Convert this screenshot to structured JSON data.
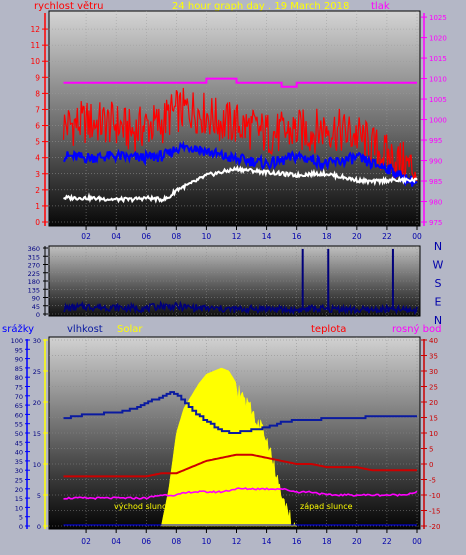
{
  "title": "24 hour graph day . 19 March 2018",
  "colors": {
    "background": "#b4b7c6",
    "wind_speed": "#ff0000",
    "wind_avg": "#0000ff",
    "wind_dir": "#00007a",
    "pressure": "#ff00ff",
    "gust": "#ffffff",
    "humidity": "#0a1aa0",
    "solar": "#ffff00",
    "temperature": "#cc0000",
    "dew_point": "#ff00ff",
    "rain": "#0000ff"
  },
  "x_tick_labels": [
    "02",
    "04",
    "06",
    "08",
    "10",
    "12",
    "14",
    "16",
    "18",
    "20",
    "22",
    "00"
  ],
  "chart_data": [
    {
      "type": "line",
      "title": "24 hour graph day . 19 March 2018",
      "y_left_label": "rychlost větru",
      "y_right_label": "tlak",
      "y_left_ticks": [
        "0",
        "1",
        "2",
        "3",
        "4",
        "5",
        "6",
        "7",
        "8",
        "9",
        "10",
        "11",
        "12"
      ],
      "y_right_ticks": [
        "975",
        "980",
        "985",
        "990",
        "995",
        "1000",
        "1005",
        "1010",
        "1015",
        "1020",
        "1025"
      ],
      "ylim_left": [
        0,
        13
      ],
      "ylim_right": [
        975,
        1026
      ],
      "x": [
        0.5,
        2,
        4,
        5,
        6,
        7,
        7.5,
        8,
        9,
        10,
        11,
        12,
        13,
        14,
        15,
        16,
        17,
        18,
        19,
        20,
        21,
        22,
        23,
        24
      ],
      "series": [
        {
          "values": [
            6.0,
            6.2,
            6.1,
            5.6,
            6.0,
            6.1,
            6.6,
            6.9,
            7.0,
            6.7,
            6.2,
            6.1,
            5.8,
            5.5,
            5.5,
            5.7,
            5.6,
            5.9,
            5.6,
            5.4,
            4.7,
            4.1,
            3.7,
            3.2
          ]
        },
        {
          "values": [
            4.1,
            4.0,
            4.1,
            4.0,
            4.0,
            4.1,
            4.2,
            4.6,
            4.7,
            4.4,
            4.1,
            3.9,
            3.8,
            3.6,
            3.8,
            4.1,
            3.9,
            3.6,
            3.8,
            4.0,
            3.6,
            3.4,
            2.8,
            2.4
          ]
        },
        {
          "values": [
            1.5,
            1.5,
            1.4,
            1.4,
            1.5,
            1.4,
            1.5,
            2.0,
            2.4,
            2.9,
            3.1,
            3.3,
            3.2,
            3.1,
            3.0,
            2.9,
            3.0,
            3.0,
            2.8,
            2.6,
            2.5,
            2.6,
            2.6,
            2.6
          ]
        },
        {
          "values": [
            1009,
            1009,
            1009,
            1009,
            1009,
            1009,
            1009,
            1009,
            1009,
            1010,
            1010,
            1009,
            1009,
            1009,
            1008,
            1009,
            1009,
            1009,
            1009,
            1009,
            1009,
            1009,
            1009,
            1009
          ]
        }
      ]
    },
    {
      "type": "line",
      "y_left_ticks": [
        "0",
        "45",
        "90",
        "135",
        "180",
        "225",
        "270",
        "315",
        "360"
      ],
      "y_right_ticks": [
        "N",
        "W",
        "S",
        "E",
        "N"
      ],
      "ylim": [
        0,
        360
      ],
      "x": [
        0.5,
        2,
        4,
        6,
        7,
        8,
        9,
        10,
        12,
        14,
        15.5,
        16.5,
        17,
        18,
        19,
        20,
        22,
        24
      ],
      "series": [
        {
          "values": [
            30,
            40,
            35,
            30,
            45,
            40,
            35,
            30,
            25,
            30,
            20,
            25,
            30,
            25,
            30,
            20,
            25,
            20
          ]
        }
      ],
      "spikes": [
        {
          "x": 16.4,
          "value": 355
        },
        {
          "x": 18.1,
          "value": 355
        },
        {
          "x": 22.4,
          "value": 355
        }
      ]
    },
    {
      "type": "area",
      "y_axis_labels": [
        "srážky",
        "vlhkost",
        "Solar",
        "teplota",
        "rosný bod"
      ],
      "rain_ticks": [
        "0",
        "5",
        "10",
        "15",
        "20",
        "25",
        "30",
        "35",
        "40",
        "45",
        "50",
        "55",
        "60",
        "65",
        "70",
        "75",
        "80",
        "85",
        "90",
        "95",
        "100"
      ],
      "humidity_ticks": [
        "0",
        "5",
        "10",
        "15",
        "20",
        "25",
        "30"
      ],
      "temperature_ticks": [
        "-20",
        "-15",
        "-10",
        "-5",
        "0",
        "5",
        "10",
        "15",
        "20",
        "25",
        "30",
        "35",
        "40"
      ],
      "ylim_humidity": [
        0,
        100
      ],
      "ylim_temperature": [
        -20,
        40
      ],
      "annotations": [
        "východ slunce",
        "západ slunce"
      ],
      "x": [
        0.5,
        2,
        4,
        5,
        6,
        7,
        7.5,
        8,
        9,
        10,
        11,
        12,
        13,
        14,
        15,
        16,
        17,
        18,
        19,
        20,
        21,
        22,
        23,
        24
      ],
      "series": [
        {
          "values": [
            58,
            60,
            61,
            63,
            66,
            70,
            72,
            71,
            62,
            56,
            51,
            50,
            52,
            53,
            56,
            57,
            57,
            58,
            58,
            58,
            59,
            59,
            59,
            59
          ]
        },
        {
          "values": [
            -4,
            -4,
            -4,
            -4,
            -4,
            -3,
            -3,
            -3,
            -1,
            1,
            2,
            3,
            3,
            2,
            1,
            0,
            0,
            -1,
            -1,
            -1,
            -2,
            -2,
            -2,
            -2
          ]
        },
        {
          "values": [
            -11,
            -11,
            -11,
            -11,
            -11,
            -10,
            -10,
            -10,
            -9,
            -9,
            -9,
            -8,
            -8,
            -8,
            -8,
            -9,
            -9,
            -10,
            -10,
            -10,
            -10,
            -10,
            -10,
            -9
          ]
        },
        {
          "values": [
            0,
            0,
            0,
            0,
            0,
            0,
            0,
            0,
            0,
            0,
            0,
            0,
            0,
            0,
            0,
            0,
            0,
            0,
            0,
            0,
            0,
            0,
            0,
            0
          ]
        }
      ],
      "solar": {
        "x": [
          7.0,
          7.5,
          8,
          8.5,
          9,
          9.5,
          10,
          10.5,
          11,
          11.5,
          12,
          12.5,
          13,
          13.5,
          14,
          14.5,
          15,
          15.5,
          16
        ],
        "values": [
          0,
          6,
          15,
          19,
          21,
          23,
          24.5,
          25,
          25.5,
          25,
          23,
          22,
          20,
          18,
          15,
          11,
          7,
          3,
          0
        ]
      }
    }
  ]
}
